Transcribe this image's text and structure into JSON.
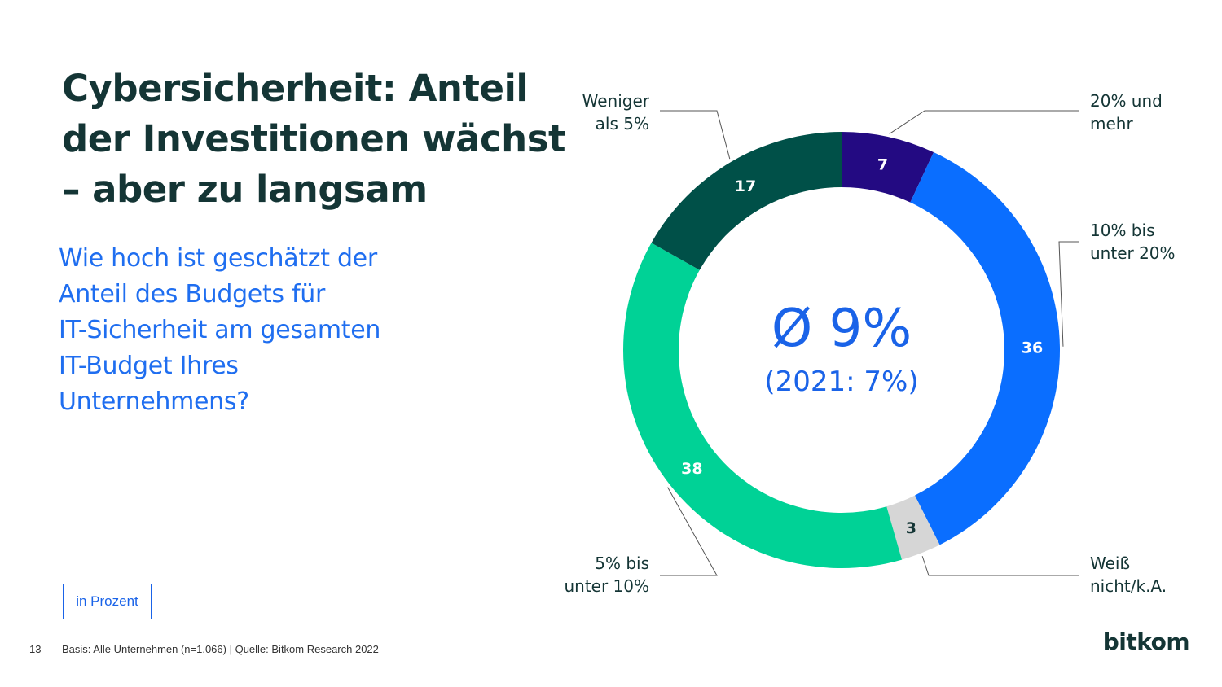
{
  "page": {
    "title_lines": [
      "Cybersicherheit: Anteil",
      "der Investitionen wächst",
      "– aber zu langsam"
    ],
    "question_lines": [
      "Wie hoch ist geschätzt der",
      "Anteil des Budgets für",
      "IT-Sicherheit am gesamten",
      "IT-Budget Ihres",
      "Unternehmens?"
    ],
    "unit": "in Prozent",
    "page_number": "13",
    "source": "Basis: Alle Unternehmen (n=1.066) | Quelle: Bitkom Research 2022",
    "logo": "bitkom"
  },
  "chart_data": {
    "type": "pie",
    "variant": "donut",
    "unit": "in Prozent",
    "center": {
      "main": "Ø 9%",
      "sub": "(2021: 7%)"
    },
    "slices": [
      {
        "label_lines": [
          "20% und",
          "mehr"
        ],
        "value": 7,
        "color": "#230a82"
      },
      {
        "label_lines": [
          "10% bis",
          "unter 20%"
        ],
        "value": 36,
        "color": "#0a6eff"
      },
      {
        "label_lines": [
          "Weiß",
          "nicht/k.A."
        ],
        "value": 3,
        "color": "#d6d6d6"
      },
      {
        "label_lines": [
          "5% bis",
          "unter 10%"
        ],
        "value": 38,
        "color": "#00d296"
      },
      {
        "label_lines": [
          "Weniger",
          "als 5%"
        ],
        "value": 17,
        "color": "#005048"
      }
    ]
  }
}
